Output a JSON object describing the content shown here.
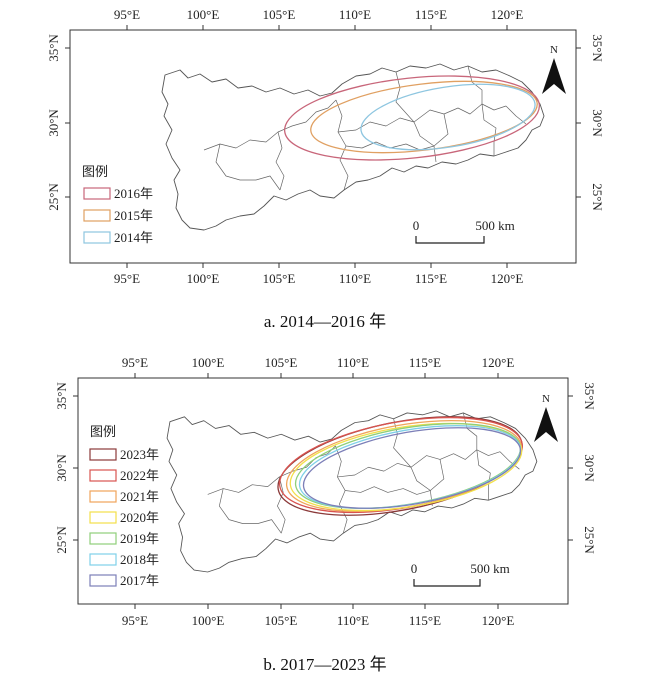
{
  "map_a": {
    "lon_labels": [
      "95°E",
      "100°E",
      "105°E",
      "110°E",
      "115°E",
      "120°E"
    ],
    "lat_labels": [
      "35°N",
      "30°N",
      "25°N"
    ],
    "legend_title": "图例",
    "legend": [
      {
        "label": "2016年",
        "color": "#c8667a"
      },
      {
        "label": "2015年",
        "color": "#e0a062"
      },
      {
        "label": "2014年",
        "color": "#8ec6e0"
      }
    ],
    "scale": {
      "start": "0",
      "end": "500 km"
    },
    "north": "N",
    "caption": "a. 2014—2016 年"
  },
  "map_b": {
    "lon_labels": [
      "95°E",
      "100°E",
      "105°E",
      "110°E",
      "115°E",
      "120°E"
    ],
    "lat_labels": [
      "35°N",
      "30°N",
      "25°N"
    ],
    "legend_title": "图例",
    "legend": [
      {
        "label": "2023年",
        "color": "#8b3a3a"
      },
      {
        "label": "2022年",
        "color": "#d9534f"
      },
      {
        "label": "2021年",
        "color": "#f0a45a"
      },
      {
        "label": "2020年",
        "color": "#f2e04a"
      },
      {
        "label": "2019年",
        "color": "#8fcf7a"
      },
      {
        "label": "2018年",
        "color": "#7fd0e8"
      },
      {
        "label": "2017年",
        "color": "#7c7fb8"
      }
    ],
    "scale": {
      "start": "0",
      "end": "500 km"
    },
    "north": "N",
    "caption": "b. 2017—2023 年"
  }
}
